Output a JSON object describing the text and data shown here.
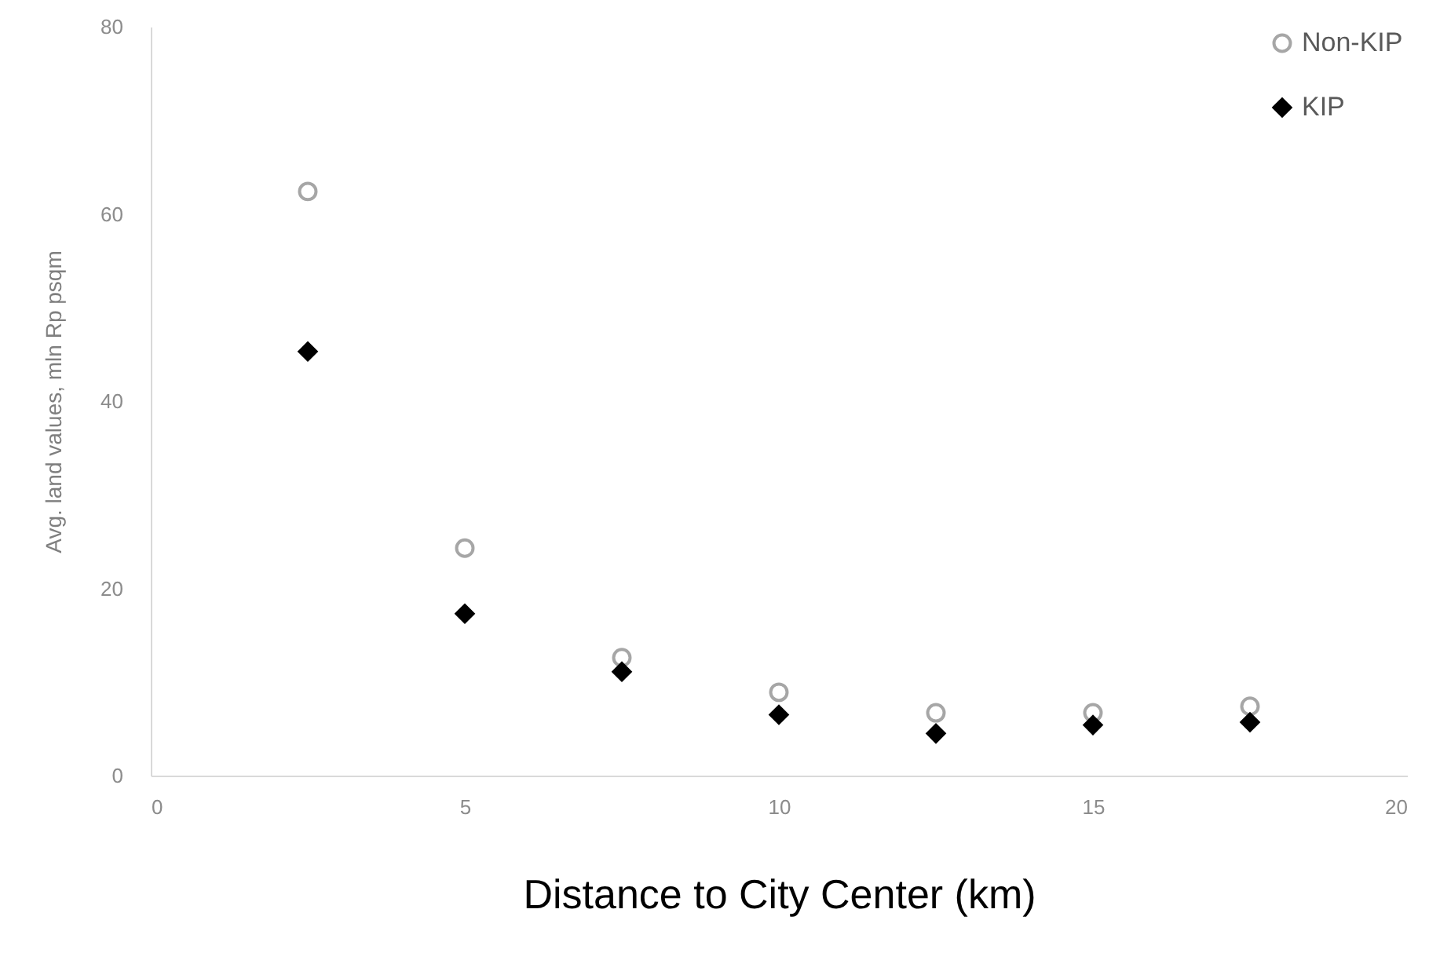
{
  "chart_data": {
    "type": "scatter",
    "xlabel": "Distance to City Center (km)",
    "ylabel": "Avg. land values, mln Rp psqm",
    "x": [
      2.5,
      5,
      7.5,
      10,
      12.5,
      15,
      17.5
    ],
    "series": [
      {
        "name": "Non-KIP",
        "color": "#a6a6a6",
        "marker": "circle",
        "values": [
          62.4,
          24.3,
          12.6,
          8.9,
          6.7,
          6.7,
          7.4
        ]
      },
      {
        "name": "KIP",
        "color": "#000000",
        "marker": "diamond",
        "values": [
          45.3,
          17.3,
          11.1,
          6.5,
          4.5,
          5.4,
          5.7
        ]
      }
    ],
    "xlim": [
      0,
      20
    ],
    "xticks": [
      0,
      5,
      10,
      15,
      20
    ],
    "ylim": [
      0,
      80
    ],
    "yticks": [
      0,
      20,
      40,
      60,
      80
    ],
    "grid": false,
    "legend": "top right"
  }
}
